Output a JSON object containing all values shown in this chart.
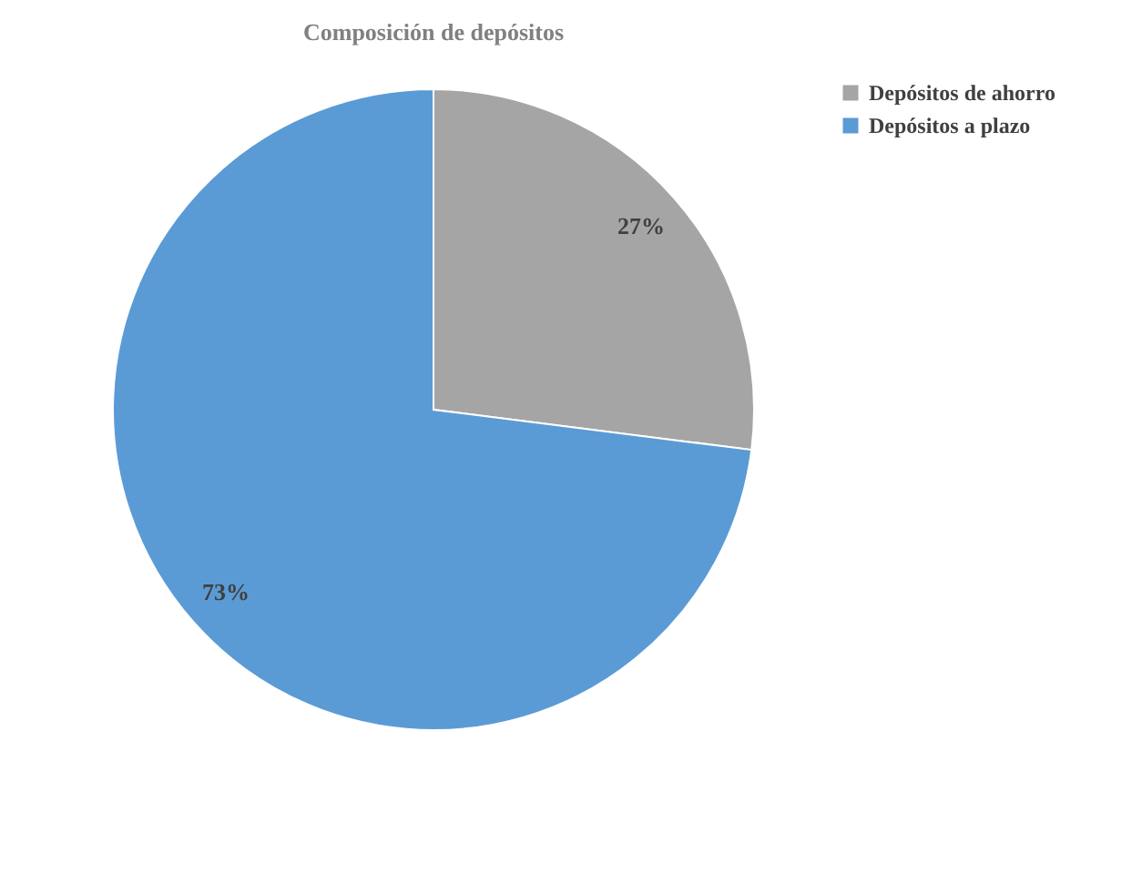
{
  "chart_data": {
    "type": "pie",
    "title": "Composición de depósitos",
    "categories": [
      "Depósitos de ahorro",
      "Depósitos a plazo"
    ],
    "values": [
      27,
      73
    ],
    "colors": [
      "#a5a5a5",
      "#5b9bd5"
    ],
    "value_labels": [
      "27%",
      "73%"
    ],
    "legend": "right"
  }
}
